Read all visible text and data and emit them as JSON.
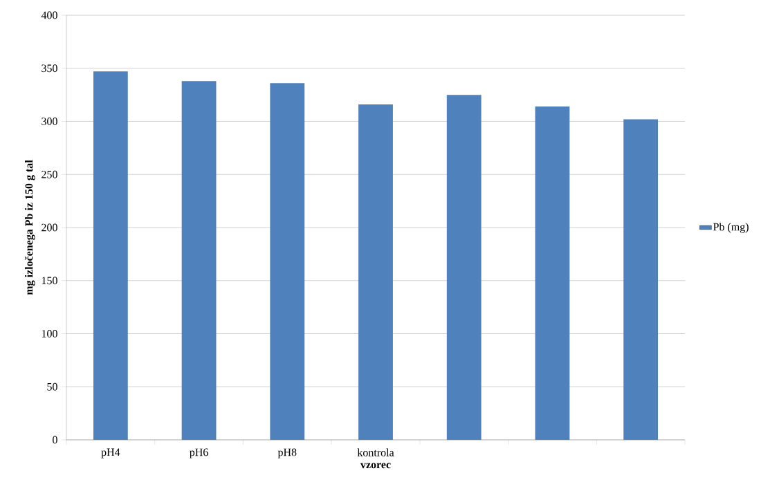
{
  "chart_data": {
    "type": "bar",
    "xlabel": "vzorec",
    "ylabel": "mg izločenega Pb iz 150 g tal",
    "categories": [
      "pH4",
      "pH6",
      "pH8",
      "kontrola",
      null,
      null,
      null
    ],
    "series": [
      {
        "name": "Pb (mg)",
        "color": "#4f81bd",
        "values": [
          347,
          338,
          336,
          316,
          325,
          314,
          302
        ]
      }
    ],
    "ylim": [
      0,
      400
    ],
    "yticks": [
      0,
      50,
      100,
      150,
      200,
      250,
      300,
      350,
      400
    ],
    "grid": "y",
    "legend": "right"
  }
}
